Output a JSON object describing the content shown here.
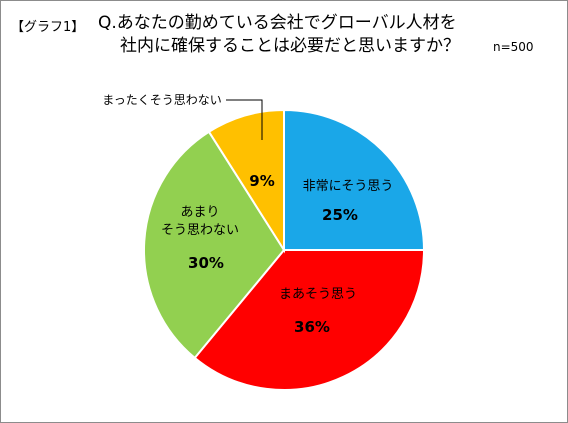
{
  "graph_label": "【グラフ1】",
  "title_line1": "Q.あなたの勤めている会社でグローバル人材を",
  "title_line2": "社内に確保することは必要だと思いますか？",
  "sample_size": "n=500",
  "chart_data": {
    "type": "pie",
    "slices": [
      {
        "label": "非常にそう思う",
        "value": 25,
        "display": "25%",
        "color": "#1aa7e8"
      },
      {
        "label": "まあそう思う",
        "value": 36,
        "display": "36%",
        "color": "#ff0000"
      },
      {
        "label_lines": [
          "あまり",
          "そう思わない"
        ],
        "value": 30,
        "display": "30%",
        "color": "#92d050"
      },
      {
        "label": "まったくそう思わない",
        "value": 9,
        "display": "9%",
        "color": "#ffc000"
      }
    ]
  }
}
